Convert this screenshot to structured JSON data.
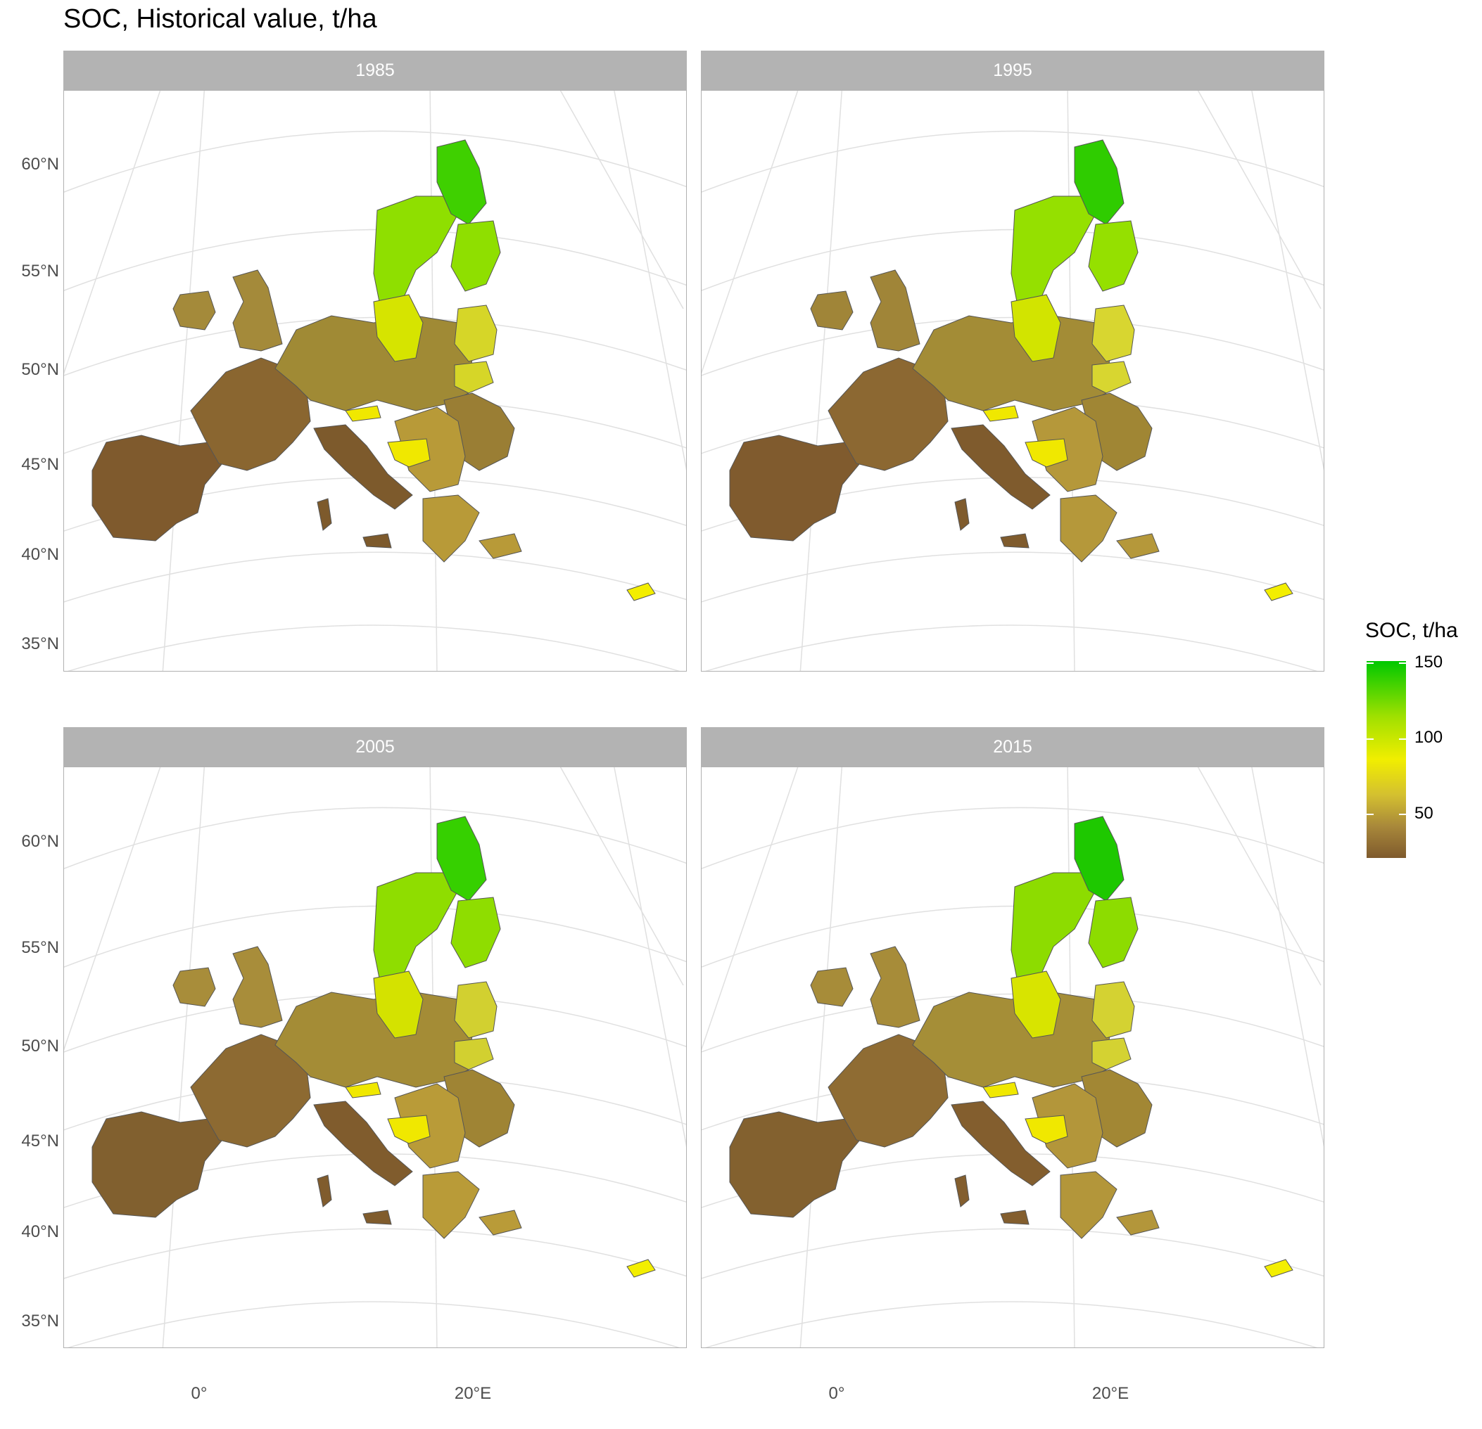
{
  "title": "SOC, Historical value, t/ha",
  "facets": [
    {
      "label": "1985",
      "fills": {
        "north": "#3fd000",
        "nordic": "#8fdf00",
        "sweden_south": "#d6e400",
        "baltic": "#d6d628",
        "iberia": "#7f5a2d",
        "france": "#8a6630",
        "central": "#a08a35",
        "east": "#9a7e34",
        "uk": "#a48a3a",
        "italy": "#7d5a2c",
        "balkan": "#b89a38",
        "alpine": "#f0e800",
        "cyprus": "#f3ee00"
      }
    },
    {
      "label": "1995",
      "fills": {
        "north": "#2fcc00",
        "nordic": "#95e000",
        "sweden_south": "#d2e400",
        "baltic": "#d8d630",
        "iberia": "#805b2e",
        "france": "#8c6832",
        "central": "#a38c36",
        "east": "#a08634",
        "uk": "#a08538",
        "italy": "#7f5b2d",
        "balkan": "#b5983a",
        "alpine": "#f0e800",
        "cyprus": "#f3ee00"
      }
    },
    {
      "label": "2005",
      "fills": {
        "north": "#36d000",
        "nordic": "#8fdd00",
        "sweden_south": "#d4e200",
        "baltic": "#d2d030",
        "iberia": "#81602f",
        "france": "#8d6a32",
        "central": "#a48c36",
        "east": "#9f8434",
        "uk": "#a88d3a",
        "italy": "#805c2d",
        "balkan": "#b99b38",
        "alpine": "#f0e800",
        "cyprus": "#f3ee00"
      }
    },
    {
      "label": "2015",
      "fills": {
        "north": "#1ec800",
        "nordic": "#8ddc00",
        "sweden_south": "#d8e400",
        "baltic": "#d4d232",
        "iberia": "#83612f",
        "france": "#8f6c33",
        "central": "#a58e37",
        "east": "#a28734",
        "uk": "#a78c39",
        "italy": "#835e2e",
        "balkan": "#b3963a",
        "alpine": "#f0e800",
        "cyprus": "#f3ee00"
      }
    }
  ],
  "axes": {
    "y_ticks": [
      "60°N",
      "55°N",
      "50°N",
      "45°N",
      "40°N",
      "35°N"
    ],
    "x_ticks": [
      "0°",
      "20°E"
    ]
  },
  "legend": {
    "title": "SOC, t/ha",
    "ticks": [
      "150",
      "100",
      "50"
    ]
  }
}
